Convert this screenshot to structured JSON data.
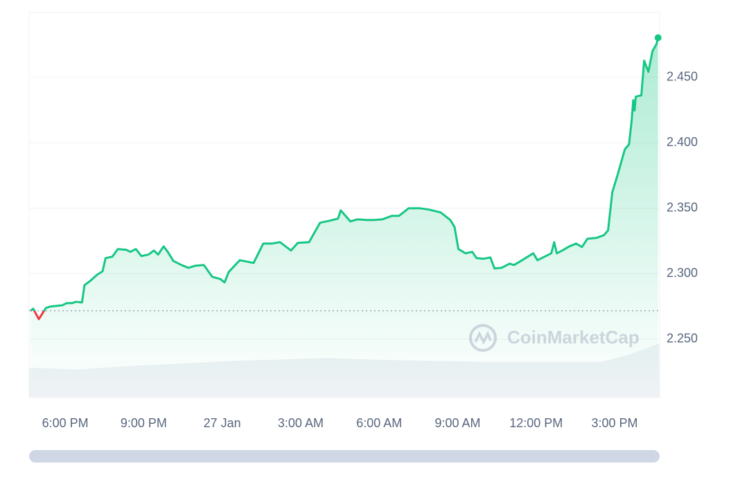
{
  "chart_data": {
    "type": "line",
    "watermark": "CoinMarketCap",
    "x": [
      -7.32,
      -7.22,
      -7.01,
      -6.74,
      -6.58,
      -6.11,
      -5.95,
      -5.74,
      -5.58,
      -5.36,
      -5.26,
      -5.05,
      -4.78,
      -4.57,
      -4.46,
      -4.2,
      -3.99,
      -3.67,
      -3.51,
      -3.3,
      -3.09,
      -2.82,
      -2.61,
      -2.45,
      -2.24,
      -2.08,
      -1.87,
      -1.55,
      -1.29,
      -1.02,
      -0.7,
      -0.38,
      -0.07,
      0.09,
      0.25,
      0.67,
      0.93,
      1.2,
      1.57,
      1.89,
      2.21,
      2.63,
      2.89,
      3.32,
      3.74,
      4.11,
      4.43,
      4.53,
      4.9,
      5.17,
      5.54,
      5.81,
      6.12,
      6.49,
      6.76,
      7.13,
      7.55,
      7.92,
      8.35,
      8.72,
      8.88,
      9.03,
      9.3,
      9.56,
      9.72,
      9.99,
      10.25,
      10.41,
      10.68,
      10.99,
      11.15,
      11.42,
      11.68,
      11.89,
      12.05,
      12.32,
      12.58,
      12.69,
      12.79,
      13.0,
      13.27,
      13.53,
      13.75,
      13.96,
      14.28,
      14.59,
      14.75,
      14.91,
      15.12,
      15.39,
      15.55,
      15.65,
      15.71,
      15.76,
      15.81,
      16.02,
      16.13,
      16.29,
      16.45,
      16.6,
      16.66
    ],
    "series": [
      {
        "color": "#16c784",
        "down_color": "#ea3943",
        "values": [
          2.2717,
          2.2733,
          2.2653,
          2.2738,
          2.2749,
          2.2759,
          2.2775,
          2.2775,
          2.2786,
          2.278,
          2.2913,
          2.2944,
          2.2992,
          2.3019,
          2.3119,
          2.313,
          2.3188,
          2.3183,
          2.3167,
          2.3188,
          2.3135,
          2.3146,
          2.3177,
          2.3146,
          2.3209,
          2.3167,
          2.3098,
          2.3066,
          2.3045,
          2.3061,
          2.3066,
          2.2976,
          2.296,
          2.2934,
          2.3013,
          2.3103,
          2.3093,
          2.3082,
          2.323,
          2.323,
          2.3241,
          2.3177,
          2.3235,
          2.3241,
          2.3389,
          2.3405,
          2.3421,
          2.3484,
          2.3399,
          2.3415,
          2.341,
          2.341,
          2.3415,
          2.3442,
          2.3442,
          2.35,
          2.35,
          2.3489,
          2.3468,
          2.341,
          2.3357,
          2.3188,
          2.3156,
          2.3167,
          2.3119,
          2.3114,
          2.3124,
          2.304,
          2.3045,
          2.3077,
          2.3066,
          2.3098,
          2.313,
          2.3156,
          2.3103,
          2.313,
          2.3156,
          2.3241,
          2.3156,
          2.3177,
          2.3209,
          2.323,
          2.3204,
          2.3267,
          2.3272,
          2.3294,
          2.3331,
          2.3622,
          2.3759,
          2.395,
          2.3987,
          2.4167,
          2.4325,
          2.4246,
          2.4352,
          2.4362,
          2.4627,
          2.4542,
          2.4701,
          2.4754,
          2.4802
        ]
      }
    ],
    "baseline": 2.2717,
    "volume": {
      "color": "#eff2f5",
      "ylim": [
        0,
        200
      ],
      "x": [
        -7.38,
        -5.5,
        -4,
        -1,
        0.5,
        3,
        4,
        6,
        8,
        10,
        13,
        14.5,
        15.5,
        16.72
      ],
      "values": [
        15.5,
        14.5,
        16,
        18,
        19,
        20,
        20.5,
        19.5,
        19,
        18.5,
        18.5,
        18.5,
        22,
        28
      ]
    },
    "xlim": [
      -7.38,
      16.72
    ],
    "xticks": [
      {
        "value": -6,
        "label": "6:00 PM"
      },
      {
        "value": -3,
        "label": "9:00 PM"
      },
      {
        "value": 0,
        "label": "27 Jan"
      },
      {
        "value": 3,
        "label": "3:00 AM"
      },
      {
        "value": 6,
        "label": "6:00 AM"
      },
      {
        "value": 9,
        "label": "9:00 AM"
      },
      {
        "value": 12,
        "label": "12:00 PM"
      },
      {
        "value": 15,
        "label": "3:00 PM"
      }
    ],
    "ylim": [
      2.2055,
      2.4995
    ],
    "yticks": [
      {
        "value": 2.25,
        "label": "2.250"
      },
      {
        "value": 2.3,
        "label": "2.300"
      },
      {
        "value": 2.35,
        "label": "2.350"
      },
      {
        "value": 2.4,
        "label": "2.400"
      },
      {
        "value": 2.45,
        "label": "2.450"
      }
    ],
    "grid": true
  }
}
